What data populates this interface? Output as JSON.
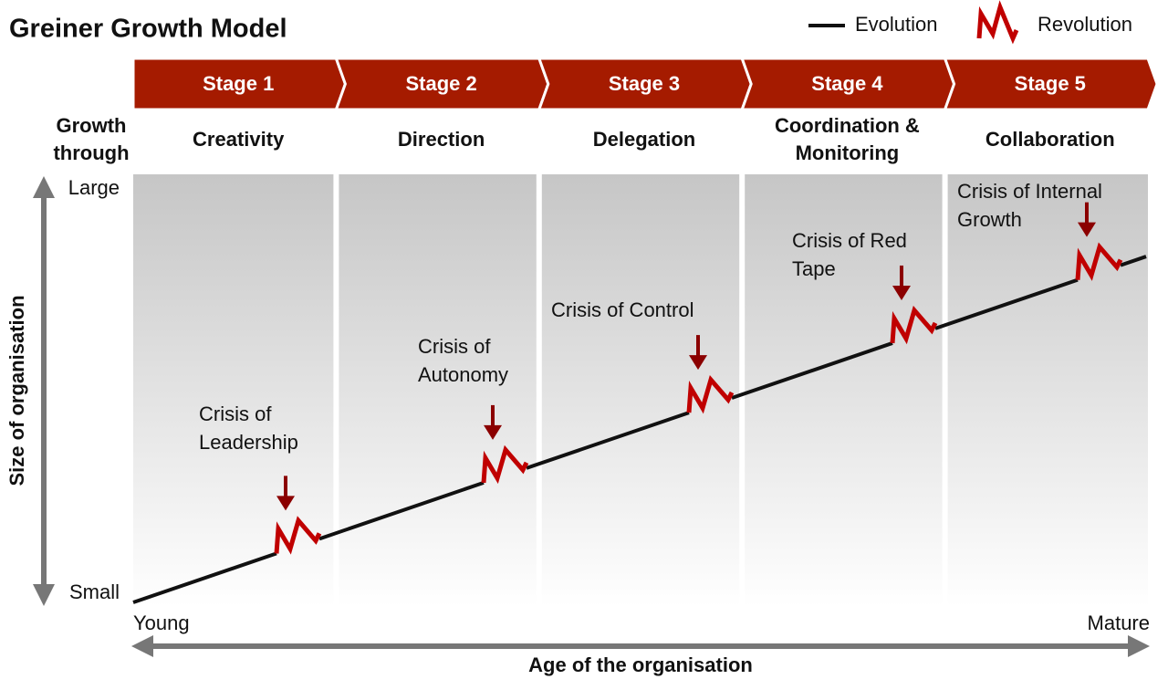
{
  "header": {
    "title": "Greiner Growth Model"
  },
  "legend": {
    "evolution": "Evolution",
    "revolution": "Revolution"
  },
  "row_label": [
    "Growth",
    "through"
  ],
  "stages": [
    {
      "label": "Stage 1",
      "theme": [
        "Creativity"
      ]
    },
    {
      "label": "Stage 2",
      "theme": [
        "Direction"
      ]
    },
    {
      "label": "Stage 3",
      "theme": [
        "Delegation"
      ]
    },
    {
      "label": "Stage 4",
      "theme": [
        "Coordination &",
        "Monitoring"
      ]
    },
    {
      "label": "Stage 5",
      "theme": [
        "Collaboration"
      ]
    }
  ],
  "crises": [
    {
      "lines": [
        "Crisis of",
        "Leadership"
      ]
    },
    {
      "lines": [
        "Crisis of",
        "Autonomy"
      ]
    },
    {
      "lines": [
        "Crisis of Control"
      ]
    },
    {
      "lines": [
        "Crisis of Red",
        "Tape"
      ]
    },
    {
      "lines": [
        "Crisis of Internal",
        "Growth"
      ]
    }
  ],
  "y_axis": {
    "title": "Size of organisation",
    "top": "Large",
    "bottom": "Small"
  },
  "x_axis": {
    "title": "Age of the organisation",
    "left": "Young",
    "right": "Mature"
  }
}
